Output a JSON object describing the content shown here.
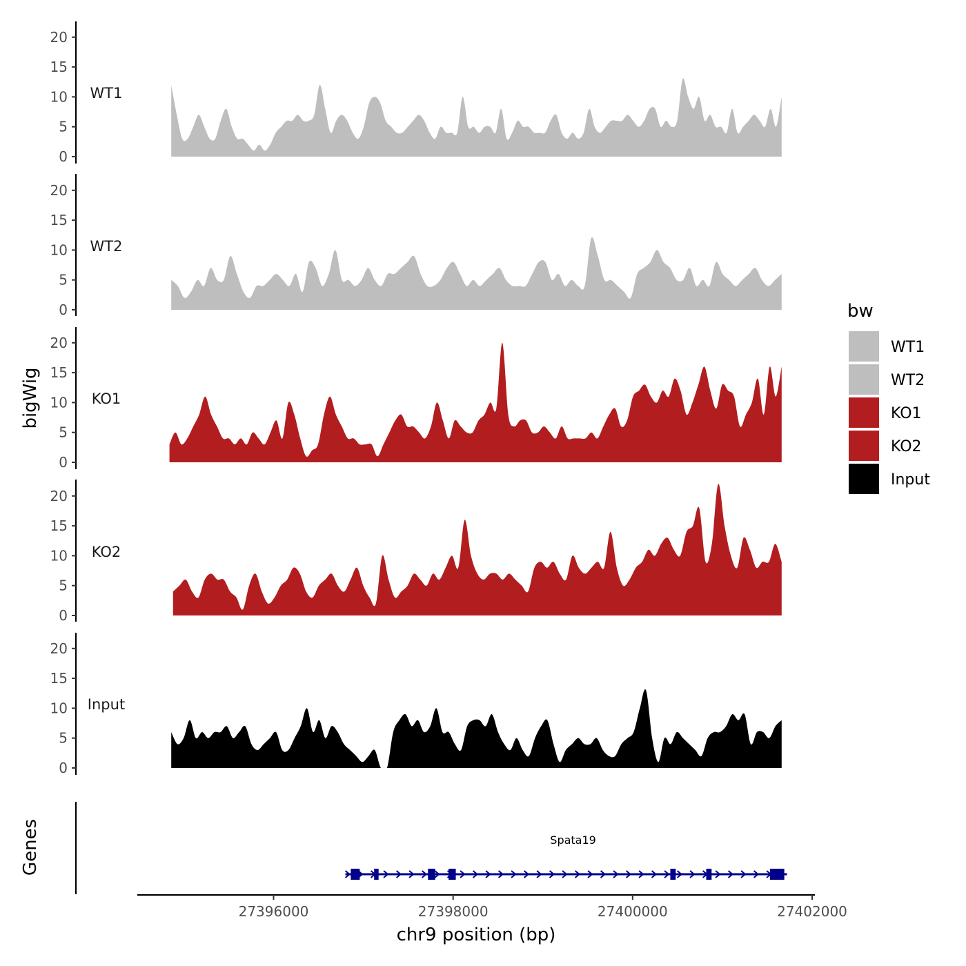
{
  "colors": {
    "WT1": "#bebebe",
    "WT2": "#bebebe",
    "KO1": "#b21e1f",
    "KO2": "#b21e1f",
    "Input": "#000000",
    "gene": "#00008b",
    "axis": "#000000"
  },
  "chart_data": {
    "type": "area",
    "title": "",
    "xlabel": "chr9 position (bp)",
    "ylabel": "bigWig",
    "ylabel_genes": "Genes",
    "xlim": [
      27394500,
      27402100
    ],
    "ylim": [
      0,
      22
    ],
    "xticks": [
      27396000,
      27398000,
      27400000,
      27402000
    ],
    "xtick_labels": [
      "27396000",
      "27398000",
      "27400000",
      "27402000"
    ],
    "yticks": [
      0,
      5,
      10,
      15,
      20
    ],
    "ytick_labels": [
      "0",
      "5",
      "10",
      "15",
      "20"
    ],
    "legend": {
      "title": "bw",
      "position": "right",
      "entries": [
        "WT1",
        "WT2",
        "KO1",
        "KO2",
        "Input"
      ]
    },
    "series": [
      {
        "name": "WT1",
        "x_start": 27394860,
        "x_end": 27401660,
        "values": [
          12,
          7,
          3,
          3,
          5,
          7,
          5,
          3,
          3,
          6,
          8,
          5,
          3,
          3,
          2,
          1,
          2,
          1,
          2,
          4,
          5,
          6,
          6,
          7,
          6,
          6,
          7,
          12,
          8,
          4,
          6,
          7,
          6,
          4,
          3,
          5,
          9,
          10,
          9,
          6,
          5,
          4,
          4,
          5,
          6,
          7,
          6,
          4,
          3,
          5,
          4,
          4,
          4,
          10,
          5,
          5,
          4,
          5,
          5,
          4,
          8,
          3,
          4,
          6,
          5,
          5,
          4,
          4,
          4,
          6,
          7,
          4,
          3,
          4,
          3,
          4,
          8,
          5,
          4,
          5,
          6,
          6,
          6,
          7,
          6,
          5,
          6,
          8,
          8,
          5,
          6,
          5,
          6,
          13,
          10,
          8,
          10,
          6,
          7,
          5,
          5,
          4,
          8,
          4,
          5,
          6,
          7,
          6,
          5,
          8,
          5,
          10
        ]
      },
      {
        "name": "WT2",
        "x_start": 27394860,
        "x_end": 27401660,
        "values": [
          5,
          4,
          2,
          3,
          5,
          4,
          7,
          5,
          5,
          9,
          6,
          3,
          2,
          4,
          4,
          5,
          6,
          5,
          4,
          6,
          3,
          8,
          7,
          4,
          6,
          10,
          5,
          5,
          4,
          5,
          7,
          5,
          4,
          6,
          6,
          7,
          8,
          9,
          6,
          4,
          4,
          5,
          7,
          8,
          6,
          4,
          5,
          4,
          5,
          6,
          7,
          5,
          4,
          4,
          4,
          6,
          8,
          8,
          5,
          6,
          4,
          5,
          4,
          4,
          12,
          9,
          5,
          5,
          4,
          3,
          2,
          6,
          7,
          8,
          10,
          8,
          7,
          5,
          5,
          7,
          4,
          5,
          4,
          8,
          6,
          5,
          4,
          5,
          6,
          7,
          5,
          4,
          5,
          6
        ]
      },
      {
        "name": "KO1",
        "x_start": 27394840,
        "x_end": 27401660,
        "values": [
          3,
          5,
          3,
          4,
          6,
          8,
          11,
          8,
          6,
          4,
          4,
          3,
          4,
          3,
          5,
          4,
          3,
          5,
          7,
          4,
          10,
          8,
          4,
          1,
          2,
          3,
          8,
          11,
          8,
          6,
          4,
          4,
          3,
          3,
          3,
          1,
          3,
          5,
          7,
          8,
          6,
          6,
          5,
          4,
          6,
          10,
          7,
          4,
          7,
          6,
          5,
          5,
          7,
          8,
          10,
          9,
          20,
          8,
          6,
          7,
          7,
          5,
          5,
          6,
          5,
          4,
          6,
          4,
          4,
          4,
          4,
          5,
          4,
          6,
          8,
          9,
          6,
          7,
          11,
          12,
          13,
          11,
          10,
          12,
          11,
          14,
          12,
          8,
          10,
          13,
          16,
          12,
          9,
          13,
          12,
          11,
          6,
          8,
          10,
          14,
          8,
          16,
          11,
          16
        ]
      },
      {
        "name": "KO2",
        "x_start": 27394880,
        "x_end": 27401660,
        "values": [
          4,
          5,
          6,
          4,
          3,
          6,
          7,
          6,
          6,
          4,
          3,
          1,
          5,
          7,
          4,
          2,
          3,
          5,
          6,
          8,
          7,
          4,
          3,
          5,
          6,
          7,
          5,
          4,
          6,
          8,
          5,
          3,
          2,
          10,
          6,
          3,
          4,
          5,
          7,
          6,
          5,
          7,
          6,
          8,
          10,
          8,
          16,
          10,
          7,
          6,
          7,
          7,
          6,
          7,
          6,
          5,
          4,
          8,
          9,
          8,
          9,
          7,
          6,
          10,
          8,
          7,
          8,
          9,
          8,
          14,
          8,
          5,
          6,
          8,
          9,
          11,
          10,
          12,
          13,
          11,
          10,
          14,
          15,
          18,
          9,
          12,
          22,
          15,
          10,
          8,
          13,
          11,
          8,
          9,
          9,
          12,
          9
        ]
      },
      {
        "name": "Input",
        "x_start": 27394860,
        "x_end": 27401660,
        "values": [
          6,
          4,
          5,
          8,
          5,
          6,
          5,
          6,
          6,
          7,
          5,
          6,
          7,
          4,
          3,
          4,
          5,
          6,
          3,
          3,
          5,
          7,
          10,
          6,
          8,
          5,
          7,
          6,
          4,
          3,
          2,
          1,
          2,
          3,
          0,
          0,
          6,
          8,
          9,
          7,
          8,
          6,
          7,
          10,
          6,
          6,
          4,
          3,
          7,
          8,
          8,
          7,
          9,
          6,
          4,
          3,
          5,
          3,
          2,
          5,
          7,
          8,
          4,
          1,
          3,
          4,
          5,
          4,
          4,
          5,
          3,
          2,
          2,
          4,
          5,
          6,
          10,
          13,
          5,
          1,
          5,
          4,
          6,
          5,
          4,
          3,
          2,
          5,
          6,
          6,
          7,
          9,
          8,
          9,
          4,
          6,
          6,
          5,
          7,
          8
        ]
      }
    ],
    "genes": [
      {
        "name": "Spata19",
        "start": 27396800,
        "end": 27401720,
        "strand": "+",
        "exons": [
          [
            27396860,
            27396960
          ],
          [
            27397120,
            27397170
          ],
          [
            27397720,
            27397800
          ],
          [
            27397950,
            27398030
          ],
          [
            27400420,
            27400480
          ],
          [
            27400820,
            27400880
          ],
          [
            27401530,
            27401690
          ]
        ]
      }
    ]
  }
}
